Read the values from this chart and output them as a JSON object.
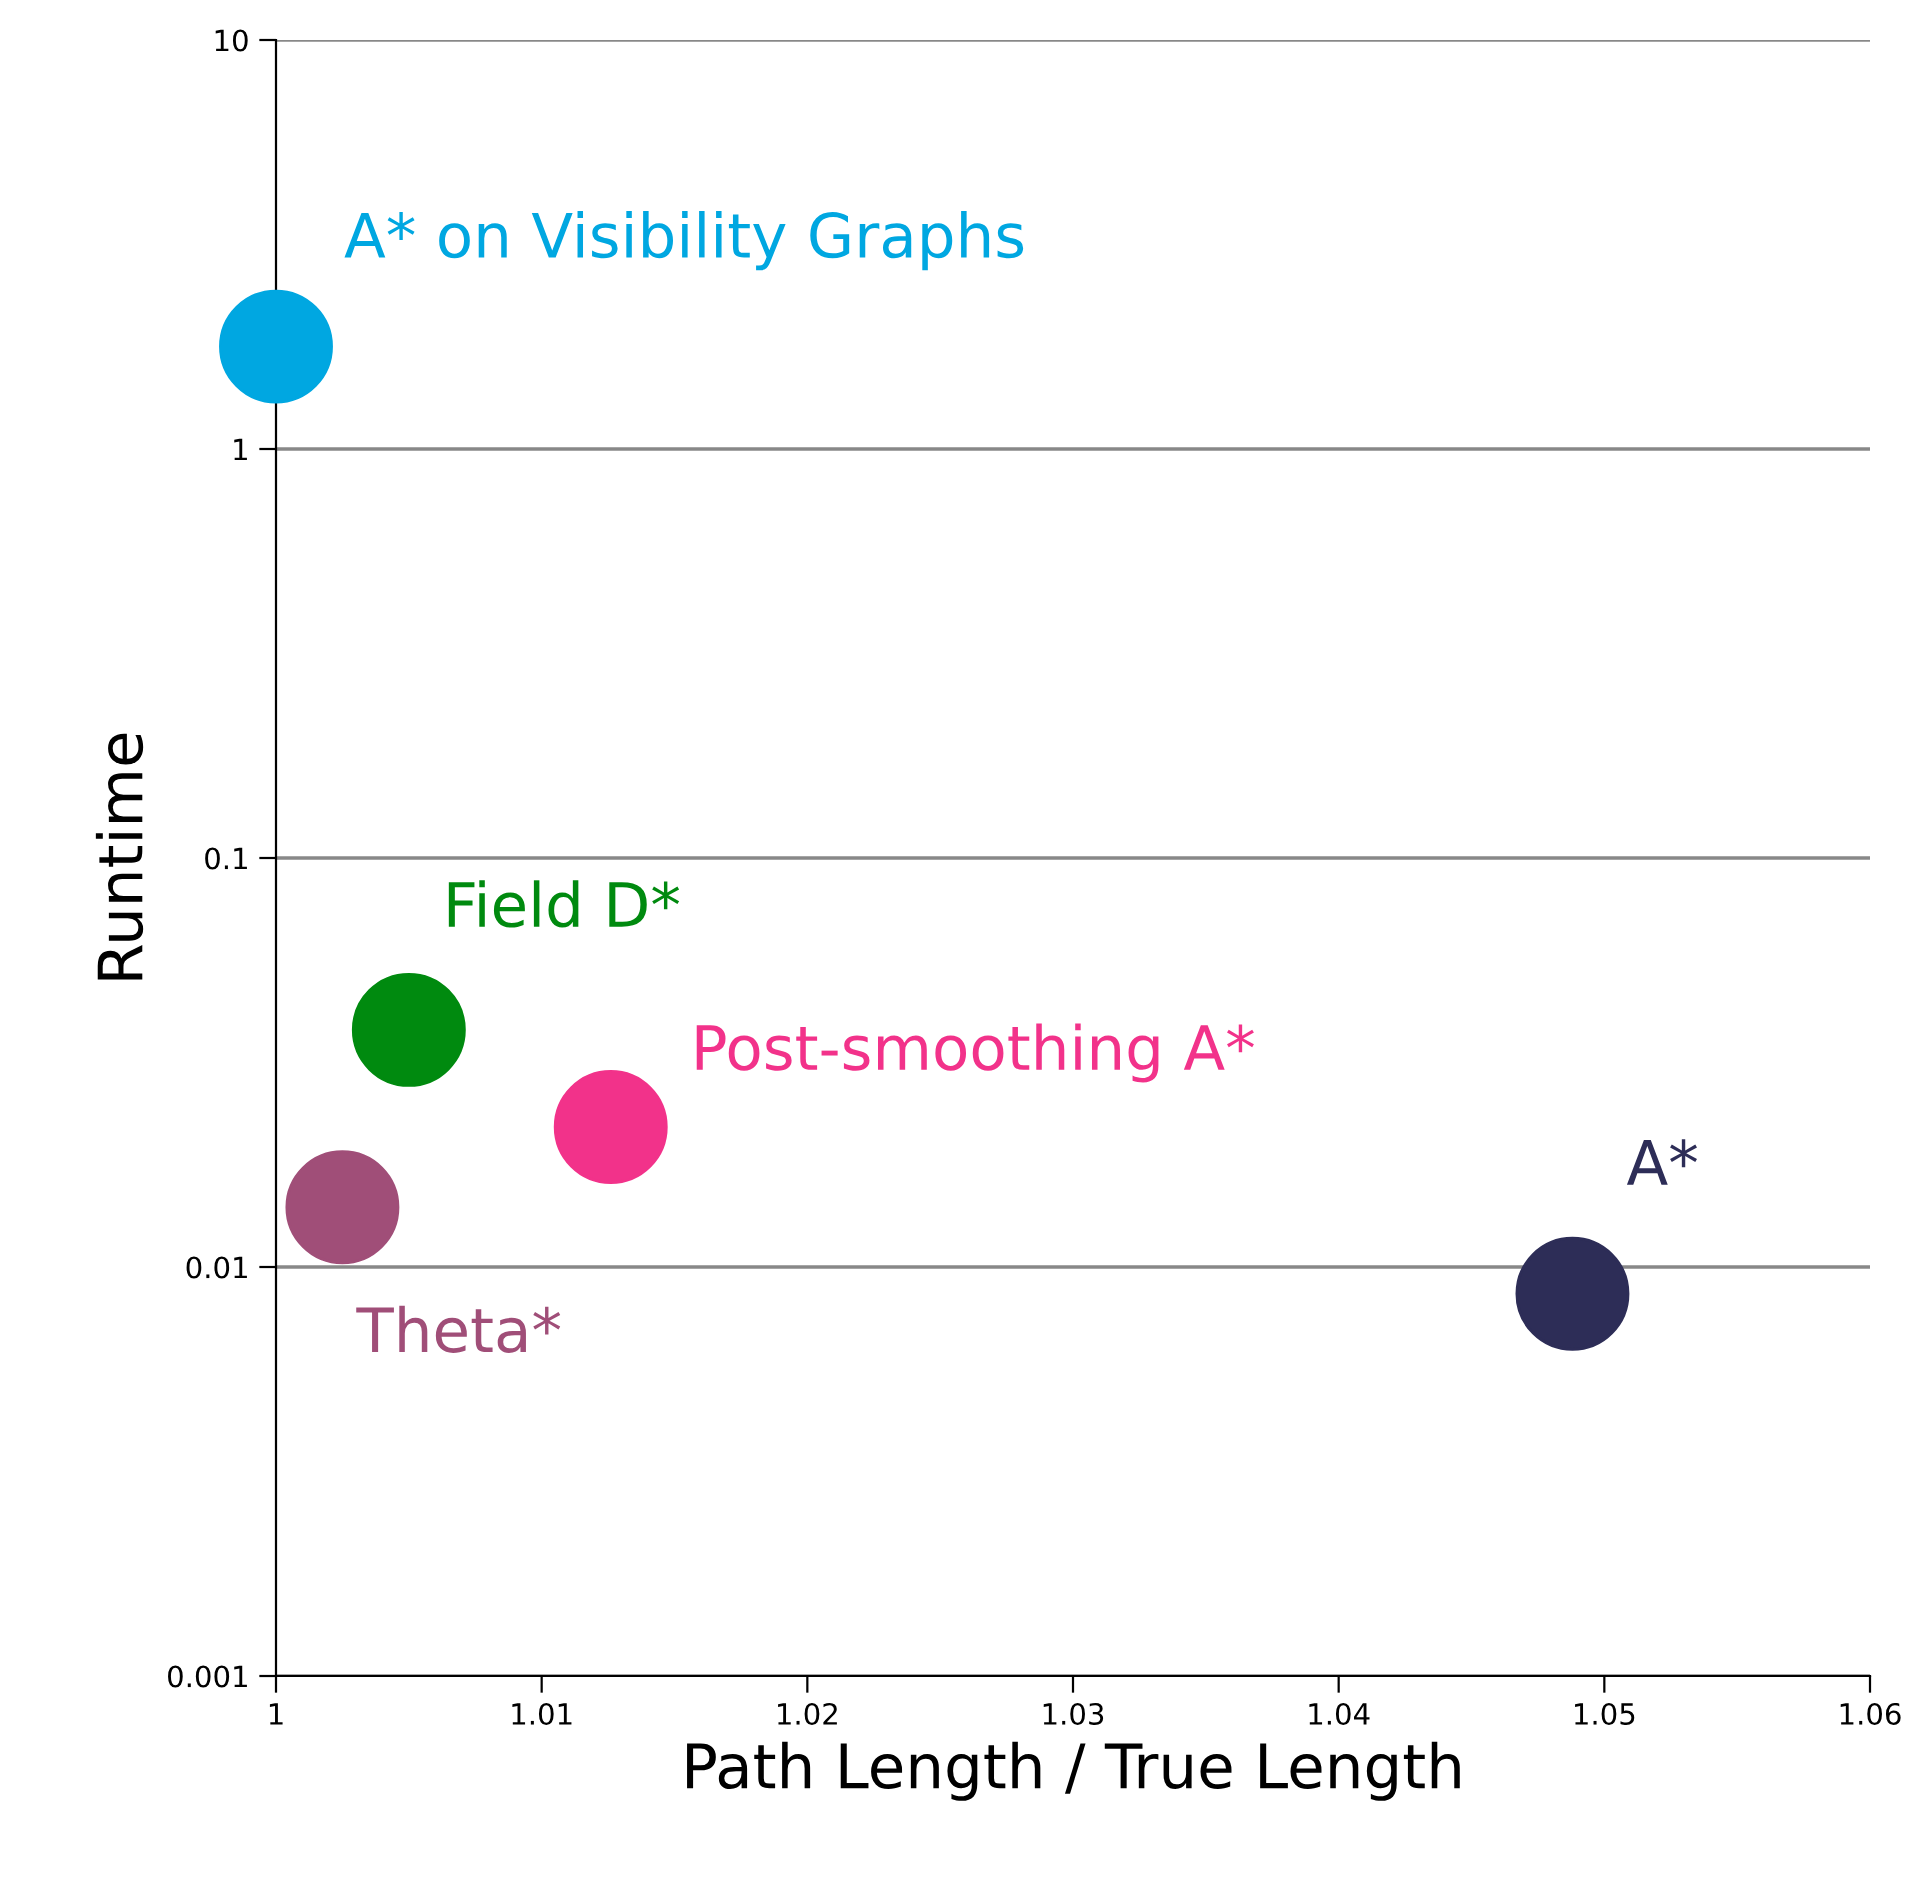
{
  "chart_data": {
    "type": "scatter",
    "xlabel": "Path Length / True Length",
    "ylabel": "Runtime",
    "log": "y",
    "grid": "y",
    "marker": "circle",
    "legend": false,
    "xlim": [
      1,
      1.06
    ],
    "xticks": [
      1,
      1.01,
      1.02,
      1.03,
      1.04,
      1.05,
      1.06
    ],
    "ylim": [
      0.001,
      10
    ],
    "yticks": [
      0.001,
      0.01,
      0.1,
      1,
      10
    ],
    "series": [
      {
        "name": "A* on Visibility Graphs",
        "color": "#00a7e1",
        "x": [
          1.0
        ],
        "values": [
          1.78
        ]
      },
      {
        "name": "Field D*",
        "color": "#008a0f",
        "x": [
          1.005
        ],
        "values": [
          0.038
        ]
      },
      {
        "name": "Post-smoothing A*",
        "color": "#f2328a",
        "x": [
          1.0126
        ],
        "values": [
          0.022
        ]
      },
      {
        "name": "Theta*",
        "color": "#a04e78",
        "x": [
          1.0025
        ],
        "values": [
          0.014
        ]
      },
      {
        "name": "A*",
        "color": "#2d2d57",
        "x": [
          1.0488
        ],
        "values": [
          0.0086
        ]
      }
    ]
  }
}
